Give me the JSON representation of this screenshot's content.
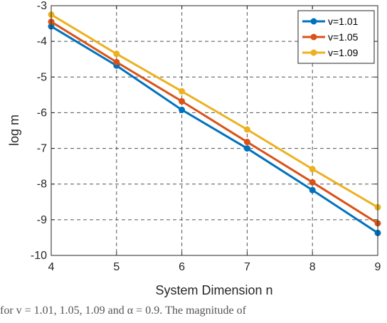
{
  "chart_data": {
    "type": "line",
    "title": "",
    "xlabel": "System Dimension n",
    "ylabel": "log m",
    "xlim": [
      4,
      9
    ],
    "ylim": [
      -10,
      -3
    ],
    "x_ticks": [
      4,
      5,
      6,
      7,
      8,
      9
    ],
    "y_ticks": [
      -3,
      -4,
      -5,
      -6,
      -7,
      -8,
      -9,
      -10
    ],
    "grid": true,
    "legend_position": "top-right",
    "x": [
      4,
      5,
      6,
      7,
      8,
      9
    ],
    "series": [
      {
        "name": "v=1.01",
        "color": "#0072BD",
        "values": [
          -3.58,
          -4.68,
          -5.92,
          -7.0,
          -8.17,
          -9.37
        ]
      },
      {
        "name": "v=1.05",
        "color": "#D95319",
        "values": [
          -3.45,
          -4.58,
          -5.68,
          -6.82,
          -7.95,
          -9.1
        ]
      },
      {
        "name": "v=1.09",
        "color": "#EDB120",
        "values": [
          -3.25,
          -4.35,
          -5.4,
          -6.47,
          -7.58,
          -8.65
        ]
      }
    ]
  },
  "caption": "for v = 1.01, 1.05, 1.09 and α = 0.9. The magnitude of"
}
